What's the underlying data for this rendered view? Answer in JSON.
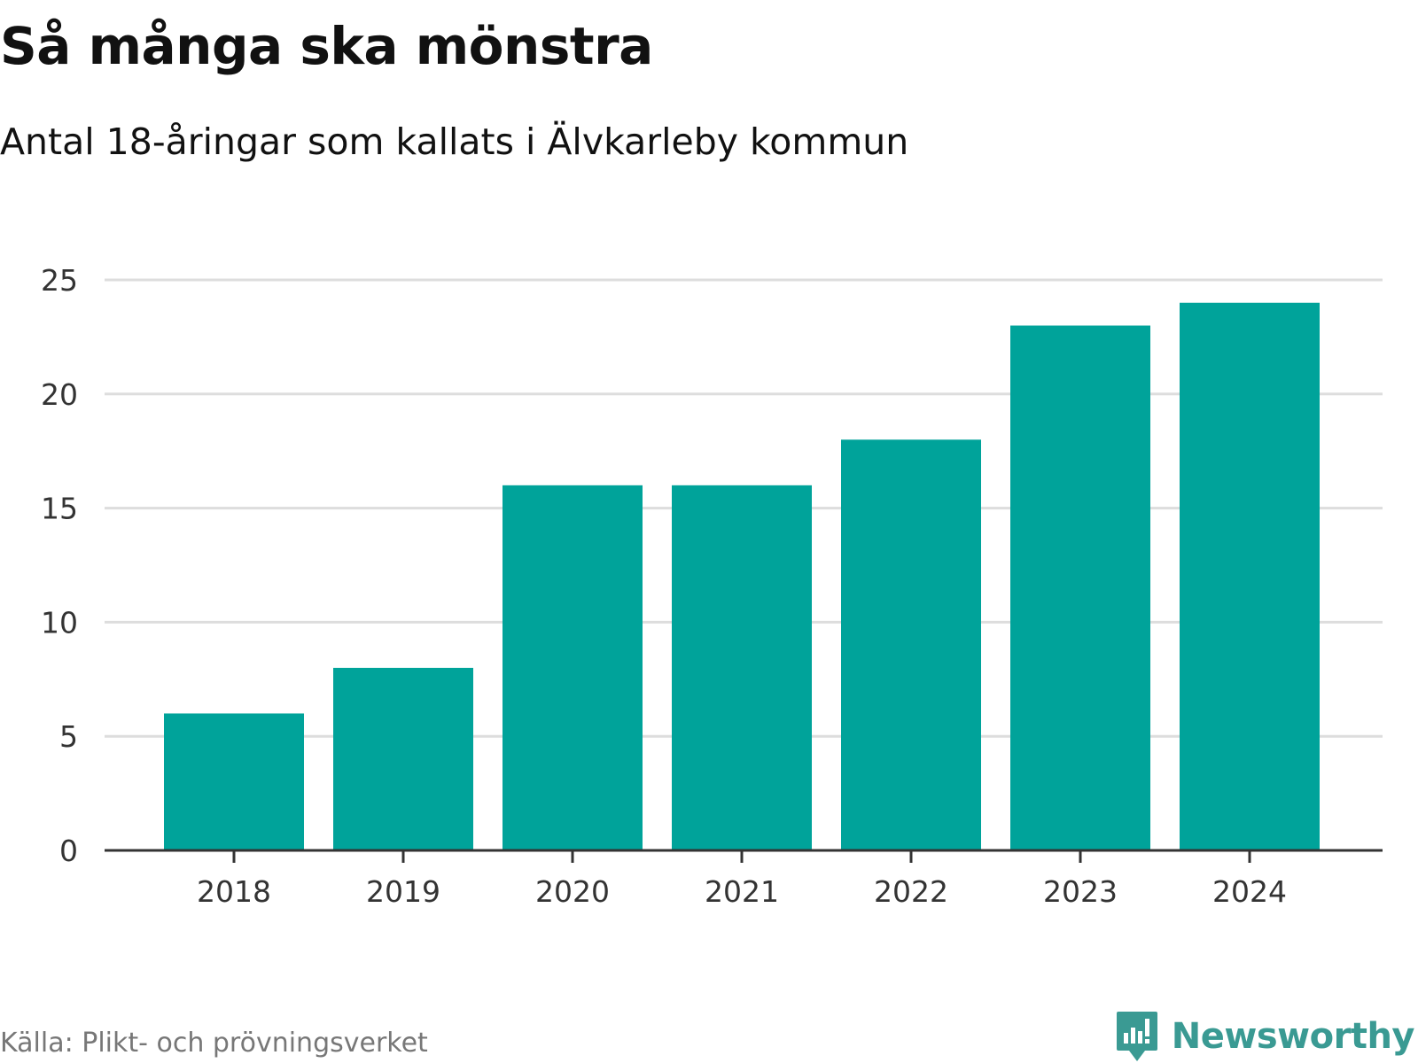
{
  "header": {
    "title": "Så många ska mönstra",
    "subtitle": "Antal 18-åringar som kallats i Älvkarleby kommun"
  },
  "footer": {
    "source": "Källa: Plikt- och prövningsverket",
    "brand": "Newsworthy",
    "brand_icon": "chart-speech-bubble-icon"
  },
  "colors": {
    "bar": "#00a39a",
    "grid": "#dddddd",
    "axis": "#333333",
    "brand": "#3a9a93"
  },
  "chart_data": {
    "type": "bar",
    "title": "Så många ska mönstra",
    "subtitle": "Antal 18-åringar som kallats i Älvkarleby kommun",
    "categories": [
      "2018",
      "2019",
      "2020",
      "2021",
      "2022",
      "2023",
      "2024"
    ],
    "values": [
      6,
      8,
      16,
      16,
      18,
      23,
      24
    ],
    "xlabel": "",
    "ylabel": "",
    "ylim": [
      0,
      25
    ],
    "yticks": [
      0,
      5,
      10,
      15,
      20,
      25
    ],
    "grid": true,
    "legend": "none"
  }
}
